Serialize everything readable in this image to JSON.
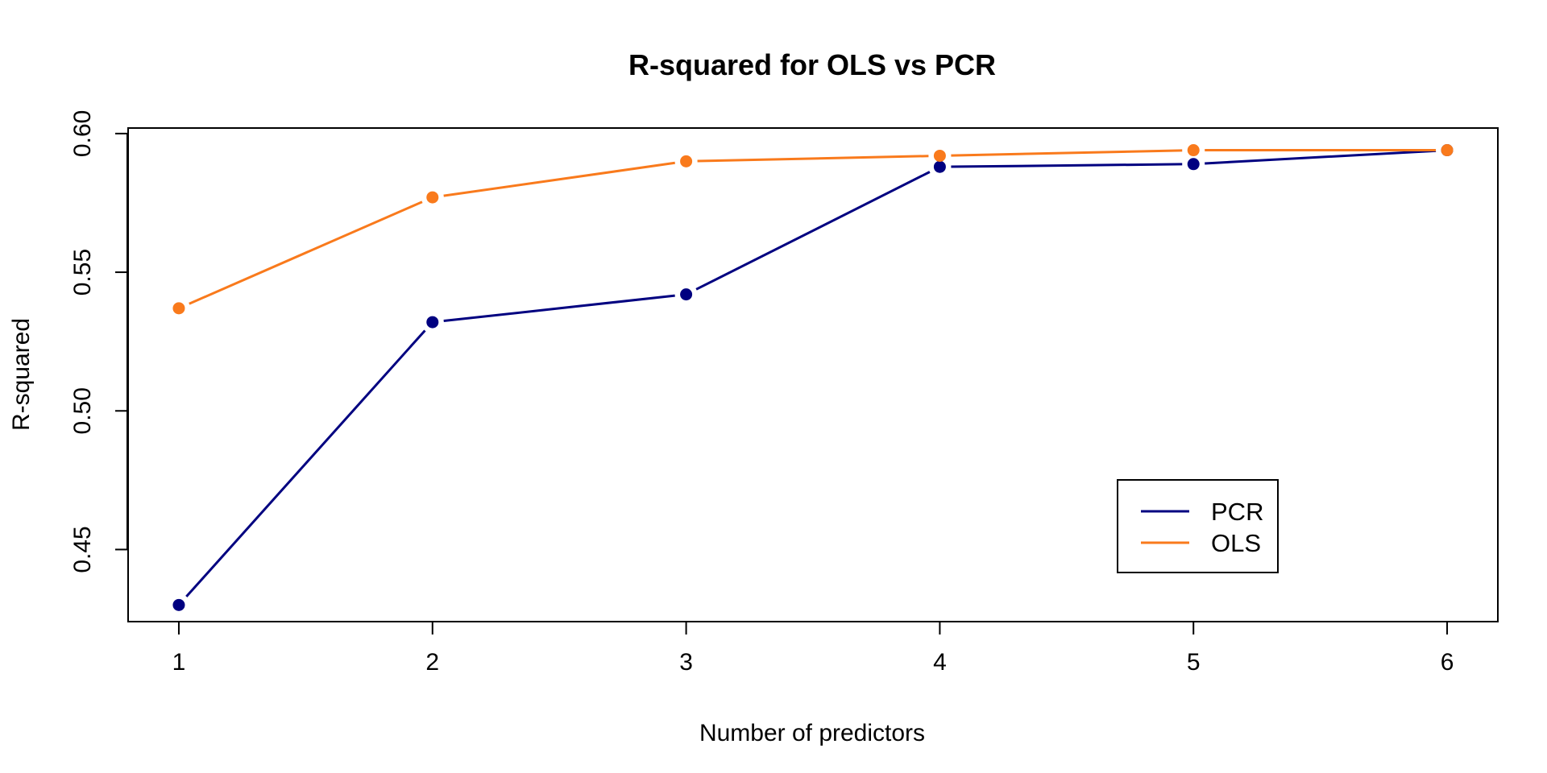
{
  "chart_data": {
    "type": "line",
    "title": "R-squared for OLS vs PCR",
    "xlabel": "Number of predictors",
    "ylabel": "R-squared",
    "x": [
      1,
      2,
      3,
      4,
      5,
      6
    ],
    "xticks": [
      "1",
      "2",
      "3",
      "4",
      "5",
      "6"
    ],
    "yticks": [
      "0.45",
      "0.50",
      "0.55",
      "0.60"
    ],
    "xlim": [
      0.8,
      6.2
    ],
    "ylim": [
      0.424,
      0.602
    ],
    "grid": false,
    "legend_position": "bottom-right",
    "series": [
      {
        "name": "PCR",
        "color": "#000080",
        "values": [
          0.43,
          0.532,
          0.542,
          0.588,
          0.589,
          0.594
        ]
      },
      {
        "name": "OLS",
        "color": "#F97A1C",
        "values": [
          0.537,
          0.577,
          0.59,
          0.592,
          0.594,
          0.594
        ]
      }
    ]
  }
}
